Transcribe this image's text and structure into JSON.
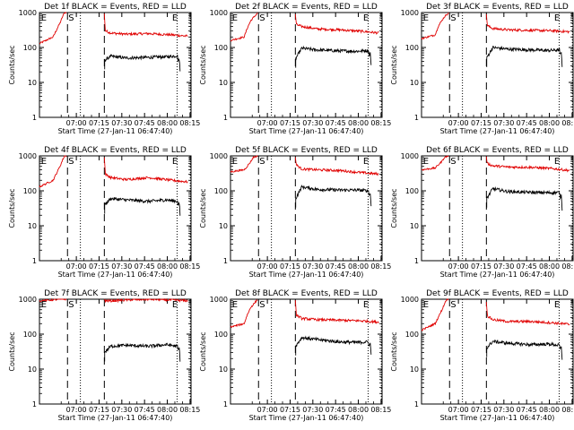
{
  "figure": {
    "x_range_minutes": [
      -12,
      88
    ],
    "y_range": [
      1,
      1000
    ],
    "y_scale": "log",
    "series_colors": {
      "events": "#000000",
      "lld": "#e00000"
    },
    "x_tick_labels": [
      "07:00",
      "07:15",
      "07:30",
      "07:45",
      "08:00",
      "08:15"
    ],
    "y_tick_labels": [
      "1",
      "10",
      "100",
      "1000"
    ],
    "ylabel": "Counts/sec",
    "xlabel": "Start Time (27-Jan-11 06:47:40)",
    "markers": {
      "e": "E",
      "s": "S"
    }
  },
  "chart_data": [
    {
      "type": "line",
      "title": "Det 1f BLACK = Events, RED = LLD",
      "xlabel": "Start Time (27-Jan-11 06:47:40)",
      "ylabel": "Counts/sec",
      "yscale": "log",
      "ylim": [
        1,
        1000
      ],
      "x_tick_labels": [
        "07:00",
        "07:15",
        "07:30",
        "07:45",
        "08:00",
        "08:15"
      ],
      "y_tick_labels": [
        "1",
        "10",
        "100",
        "1000"
      ],
      "lld": {
        "pre": {
          "x": [
            -12,
            -3,
            1.5,
            3.5,
            4.5,
            6
          ],
          "y": [
            130,
            200,
            500,
            800,
            1000,
            1000
          ]
        },
        "post": {
          "x": [
            30.8,
            31.5,
            35,
            45,
            60,
            75,
            86
          ],
          "y": [
            900,
            300,
            260,
            240,
            250,
            230,
            210
          ]
        }
      },
      "events": {
        "x": [
          31,
          35,
          45,
          60,
          72,
          79,
          79.5,
          80.3,
          80.8
        ],
        "y": [
          43,
          56,
          50,
          52,
          54,
          58,
          40,
          48,
          20
        ]
      },
      "dashed_lines_minutes": [
        6.5,
        30.8
      ],
      "dotted_lines_minutes": [
        15,
        78.8,
        87.5
      ],
      "e_markers_minutes": [
        -11,
        75.5
      ],
      "s_markers_minutes": [
        6.5
      ]
    },
    {
      "type": "line",
      "title": "Det 2f BLACK = Events, RED = LLD",
      "xlabel": "Start Time (27-Jan-11 06:47:40)",
      "ylabel": "Counts/sec",
      "yscale": "log",
      "ylim": [
        1,
        1000
      ],
      "x_tick_labels": [
        "07:00",
        "07:15",
        "07:30",
        "07:45",
        "08:00",
        "08:15"
      ],
      "y_tick_labels": [
        "1",
        "10",
        "100",
        "1000"
      ],
      "lld": {
        "pre": {
          "x": [
            -12,
            -3,
            -1,
            1.5,
            3,
            6
          ],
          "y": [
            160,
            200,
            350,
            600,
            700,
            1000
          ]
        },
        "post": {
          "x": [
            30.8,
            31.5,
            35,
            45,
            60,
            75,
            86
          ],
          "y": [
            900,
            450,
            400,
            340,
            320,
            290,
            260
          ]
        }
      },
      "events": {
        "x": [
          31,
          35,
          45,
          60,
          72,
          79,
          79.5,
          80.3,
          80.8
        ],
        "y": [
          48,
          95,
          85,
          80,
          78,
          82,
          60,
          70,
          30
        ]
      },
      "dashed_lines_minutes": [
        6.5,
        30.8
      ],
      "dotted_lines_minutes": [
        15,
        78.8,
        87.5
      ],
      "e_markers_minutes": [
        -11,
        75.5
      ],
      "s_markers_minutes": [
        6.5
      ]
    },
    {
      "type": "line",
      "title": "Det 3f BLACK = Events, RED = LLD",
      "xlabel": "Start Time (27-Jan-11 06:47:40)",
      "ylabel": "Counts/sec",
      "yscale": "log",
      "ylim": [
        1,
        1000
      ],
      "x_tick_labels": [
        "07:00",
        "07:15",
        "07:30",
        "07:45",
        "08:00",
        "08:15"
      ],
      "y_tick_labels": [
        "1",
        "10",
        "100",
        "1000"
      ],
      "lld": {
        "pre": {
          "x": [
            -12,
            -3,
            -1,
            1.5,
            3,
            6
          ],
          "y": [
            180,
            230,
            400,
            600,
            750,
            1000
          ]
        },
        "post": {
          "x": [
            30.8,
            31.5,
            35,
            45,
            60,
            75,
            86
          ],
          "y": [
            900,
            420,
            350,
            320,
            310,
            300,
            280
          ]
        }
      },
      "events": {
        "x": [
          31,
          35,
          45,
          60,
          72,
          79,
          79.5,
          80.3,
          80.8
        ],
        "y": [
          50,
          100,
          90,
          85,
          82,
          85,
          60,
          70,
          30
        ]
      },
      "dashed_lines_minutes": [
        6.5,
        30.8
      ],
      "dotted_lines_minutes": [
        15,
        78.8,
        87.5
      ],
      "e_markers_minutes": [
        -11,
        75.5
      ],
      "s_markers_minutes": [
        6.5
      ]
    },
    {
      "type": "line",
      "title": "Det 4f BLACK = Events, RED = LLD",
      "xlabel": "Start Time (27-Jan-11 06:47:40)",
      "ylabel": "Counts/sec",
      "yscale": "log",
      "ylim": [
        1,
        1000
      ],
      "x_tick_labels": [
        "07:00",
        "07:15",
        "07:30",
        "07:45",
        "08:00",
        "08:15"
      ],
      "y_tick_labels": [
        "1",
        "10",
        "100",
        "1000"
      ],
      "lld": {
        "pre": {
          "x": [
            -12,
            -3,
            1.5,
            3.5,
            4.5,
            6
          ],
          "y": [
            130,
            200,
            500,
            800,
            1000,
            1000
          ]
        },
        "post": {
          "x": [
            30.8,
            31.5,
            35,
            45,
            60,
            75,
            86
          ],
          "y": [
            900,
            300,
            240,
            210,
            240,
            200,
            180
          ]
        }
      },
      "events": {
        "x": [
          31,
          35,
          45,
          60,
          72,
          79,
          79.5,
          80.3,
          80.8
        ],
        "y": [
          40,
          60,
          55,
          50,
          55,
          50,
          38,
          45,
          20
        ]
      },
      "dashed_lines_minutes": [
        6.5,
        30.8
      ],
      "dotted_lines_minutes": [
        15,
        78.8,
        87.5
      ],
      "e_markers_minutes": [
        -11,
        75.5
      ],
      "s_markers_minutes": [
        6.5
      ]
    },
    {
      "type": "line",
      "title": "Det 5f BLACK = Events, RED = LLD",
      "xlabel": "Start Time (27-Jan-11 06:47:40)",
      "ylabel": "Counts/sec",
      "yscale": "log",
      "ylim": [
        1,
        1000
      ],
      "x_tick_labels": [
        "07:00",
        "07:15",
        "07:30",
        "07:45",
        "08:00",
        "08:15"
      ],
      "y_tick_labels": [
        "1",
        "10",
        "100",
        "1000"
      ],
      "lld": {
        "pre": {
          "x": [
            -12,
            -3,
            -1,
            1.5,
            3,
            6
          ],
          "y": [
            350,
            400,
            500,
            700,
            900,
            1000
          ]
        },
        "post": {
          "x": [
            30.8,
            31.5,
            35,
            45,
            60,
            75,
            86
          ],
          "y": [
            900,
            550,
            420,
            400,
            380,
            330,
            300
          ]
        }
      },
      "events": {
        "x": [
          31,
          35,
          45,
          60,
          72,
          79,
          79.5,
          80.3,
          80.8
        ],
        "y": [
          60,
          130,
          110,
          105,
          105,
          100,
          75,
          85,
          35
        ]
      },
      "dashed_lines_minutes": [
        6.5,
        30.8
      ],
      "dotted_lines_minutes": [
        15,
        78.8,
        87.5
      ],
      "e_markers_minutes": [
        -11,
        75.5
      ],
      "s_markers_minutes": [
        6.5
      ]
    },
    {
      "type": "line",
      "title": "Det 6f BLACK = Events, RED = LLD",
      "xlabel": "Start Time (27-Jan-11 06:47:40)",
      "ylabel": "Counts/sec",
      "yscale": "log",
      "ylim": [
        1,
        1000
      ],
      "x_tick_labels": [
        "07:00",
        "07:15",
        "07:30",
        "07:45",
        "08:00",
        "08:15"
      ],
      "y_tick_labels": [
        "1",
        "10",
        "100",
        "1000"
      ],
      "lld": {
        "pre": {
          "x": [
            -12,
            -3,
            -1,
            1.5,
            3,
            6
          ],
          "y": [
            400,
            450,
            550,
            700,
            900,
            1000
          ]
        },
        "post": {
          "x": [
            30.8,
            31.5,
            35,
            45,
            60,
            75,
            86
          ],
          "y": [
            900,
            600,
            520,
            480,
            470,
            430,
            380
          ]
        }
      },
      "events": {
        "x": [
          31,
          35,
          45,
          60,
          72,
          79,
          79.5,
          80.3,
          80.8
        ],
        "y": [
          60,
          115,
          95,
          90,
          88,
          90,
          65,
          75,
          30
        ]
      },
      "dashed_lines_minutes": [
        6.5,
        30.8
      ],
      "dotted_lines_minutes": [
        15,
        78.8,
        87.5
      ],
      "e_markers_minutes": [
        -11,
        75.5
      ],
      "s_markers_minutes": [
        6.5
      ]
    },
    {
      "type": "line",
      "title": "Det 7f BLACK = Events, RED = LLD",
      "xlabel": "Start Time (27-Jan-11 06:47:40)",
      "ylabel": "Counts/sec",
      "yscale": "log",
      "ylim": [
        1,
        1000
      ],
      "x_tick_labels": [
        "07:00",
        "07:15",
        "07:30",
        "07:45",
        "08:00",
        "08:15"
      ],
      "y_tick_labels": [
        "1",
        "10",
        "100",
        "1000"
      ],
      "lld": {
        "pre": {
          "x": [
            -12,
            -3,
            1.5,
            3.5,
            4.5,
            6
          ],
          "y": [
            900,
            950,
            1000,
            1000,
            1000,
            1000
          ]
        },
        "post": {
          "x": [
            30.8,
            31.5,
            35,
            45,
            60,
            75,
            86
          ],
          "y": [
            1000,
            900,
            900,
            950,
            1000,
            950,
            900
          ]
        }
      },
      "events": {
        "x": [
          31,
          35,
          45,
          60,
          72,
          79,
          79.5,
          80.3,
          80.8
        ],
        "y": [
          30,
          45,
          48,
          45,
          50,
          45,
          34,
          40,
          18
        ]
      },
      "dashed_lines_minutes": [
        6.5,
        30.8
      ],
      "dotted_lines_minutes": [
        15,
        78.8,
        87.5
      ],
      "e_markers_minutes": [
        -11,
        75.5
      ],
      "s_markers_minutes": [
        6.5
      ]
    },
    {
      "type": "line",
      "title": "Det 8f BLACK = Events, RED = LLD",
      "xlabel": "Start Time (27-Jan-11 06:47:40)",
      "ylabel": "Counts/sec",
      "yscale": "log",
      "ylim": [
        1,
        1000
      ],
      "x_tick_labels": [
        "07:00",
        "07:15",
        "07:30",
        "07:45",
        "08:00",
        "08:15"
      ],
      "y_tick_labels": [
        "1",
        "10",
        "100",
        "1000"
      ],
      "lld": {
        "pre": {
          "x": [
            -12,
            -3,
            -1,
            1.5,
            3,
            6
          ],
          "y": [
            160,
            200,
            350,
            600,
            700,
            1000
          ]
        },
        "post": {
          "x": [
            30.8,
            31.5,
            35,
            45,
            60,
            75,
            86
          ],
          "y": [
            900,
            350,
            280,
            260,
            250,
            240,
            220
          ]
        }
      },
      "events": {
        "x": [
          31,
          35,
          45,
          60,
          72,
          79,
          79.5,
          80.3,
          80.8
        ],
        "y": [
          45,
          80,
          70,
          60,
          58,
          60,
          45,
          55,
          25
        ]
      },
      "dashed_lines_minutes": [
        6.5,
        30.8
      ],
      "dotted_lines_minutes": [
        15,
        78.8,
        87.5
      ],
      "e_markers_minutes": [
        -11,
        75.5
      ],
      "s_markers_minutes": [
        6.5
      ]
    },
    {
      "type": "line",
      "title": "Det 9f BLACK = Events, RED = LLD",
      "xlabel": "Start Time (27-Jan-11 06:47:40)",
      "ylabel": "Counts/sec",
      "yscale": "log",
      "ylim": [
        1,
        1000
      ],
      "x_tick_labels": [
        "07:00",
        "07:15",
        "07:30",
        "07:45",
        "08:00",
        "08:15"
      ],
      "y_tick_labels": [
        "1",
        "10",
        "100",
        "1000"
      ],
      "lld": {
        "pre": {
          "x": [
            -12,
            -3,
            1.5,
            3.5,
            4.5,
            6
          ],
          "y": [
            130,
            200,
            500,
            800,
            1000,
            1000
          ]
        },
        "post": {
          "x": [
            30.8,
            31.5,
            35,
            45,
            60,
            75,
            86
          ],
          "y": [
            900,
            330,
            260,
            230,
            230,
            210,
            190
          ]
        }
      },
      "events": {
        "x": [
          31,
          35,
          45,
          60,
          72,
          79,
          79.5,
          80.3,
          80.8
        ],
        "y": [
          40,
          62,
          55,
          50,
          52,
          48,
          36,
          42,
          18
        ]
      },
      "dashed_lines_minutes": [
        6.5,
        30.8
      ],
      "dotted_lines_minutes": [
        15,
        78.8,
        87.5
      ],
      "e_markers_minutes": [
        -11,
        75.5
      ],
      "s_markers_minutes": [
        6.5
      ]
    }
  ]
}
